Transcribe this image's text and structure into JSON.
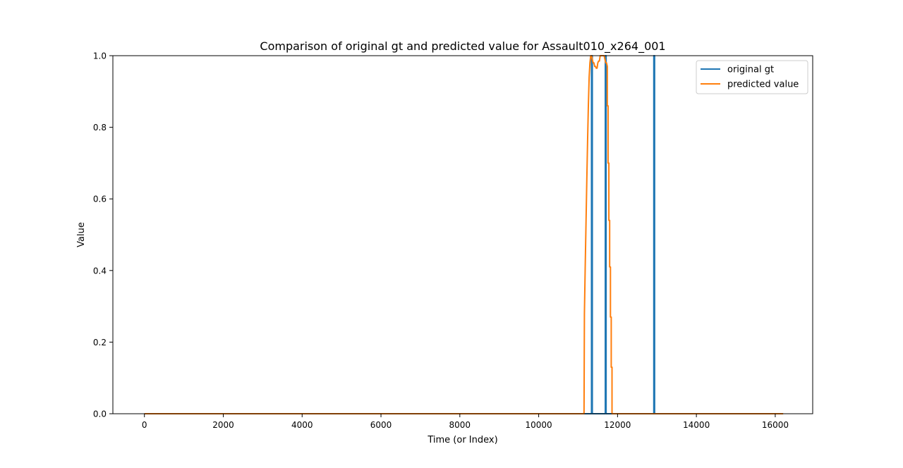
{
  "chart_data": {
    "type": "line",
    "title": "Comparison of original gt and predicted value for Assault010_x264_001",
    "xlabel": "Time (or Index)",
    "ylabel": "Value",
    "xlim": [
      -800,
      16950
    ],
    "ylim": [
      0,
      1
    ],
    "xticks": [
      0,
      2000,
      4000,
      6000,
      8000,
      10000,
      12000,
      14000,
      16000
    ],
    "xtick_labels": [
      "0",
      "2000",
      "4000",
      "6000",
      "8000",
      "10000",
      "12000",
      "14000",
      "16000"
    ],
    "yticks": [
      0.0,
      0.2,
      0.4,
      0.6,
      0.8,
      1.0
    ],
    "ytick_labels": [
      "0.0",
      "0.2",
      "0.4",
      "0.6",
      "0.8",
      "1.0"
    ],
    "grid": false,
    "legend": "top-right",
    "series": [
      {
        "name": "original gt",
        "color": "#1f77b4",
        "x": [
          0,
          11340,
          11340,
          11360,
          11360,
          11690,
          11690,
          11710,
          11710,
          12920,
          12920,
          12940,
          12940,
          16200
        ],
        "y": [
          0,
          0,
          1,
          1,
          0,
          0,
          1,
          1,
          0,
          0,
          1,
          1,
          0,
          0
        ]
      },
      {
        "name": "predicted value",
        "color": "#ff7f0e",
        "x": [
          0,
          11150,
          11160,
          11160,
          11180,
          11180,
          11200,
          11200,
          11220,
          11220,
          11240,
          11240,
          11260,
          11260,
          11280,
          11280,
          11300,
          11300,
          11320,
          11340,
          11360,
          11380,
          11400,
          11420,
          11440,
          11460,
          11480,
          11500,
          11520,
          11540,
          11560,
          11580,
          11600,
          11620,
          11640,
          11660,
          11680,
          11700,
          11720,
          11740,
          11740,
          11760,
          11760,
          11780,
          11780,
          11800,
          11800,
          11820,
          11820,
          11840,
          11840,
          11860,
          11860,
          16200
        ],
        "y": [
          0,
          0,
          0.28,
          0.28,
          0.41,
          0.41,
          0.53,
          0.53,
          0.65,
          0.65,
          0.76,
          0.76,
          0.86,
          0.86,
          0.94,
          0.94,
          0.98,
          0.98,
          1.0,
          1.0,
          0.99,
          0.98,
          0.98,
          0.97,
          0.97,
          0.965,
          0.965,
          0.98,
          0.985,
          0.985,
          1.0,
          1.0,
          1.0,
          1.0,
          1.0,
          1.0,
          0.99,
          0.98,
          0.98,
          0.97,
          0.86,
          0.86,
          0.7,
          0.7,
          0.54,
          0.54,
          0.41,
          0.41,
          0.27,
          0.27,
          0.13,
          0.13,
          0.0,
          0.0
        ]
      }
    ]
  }
}
